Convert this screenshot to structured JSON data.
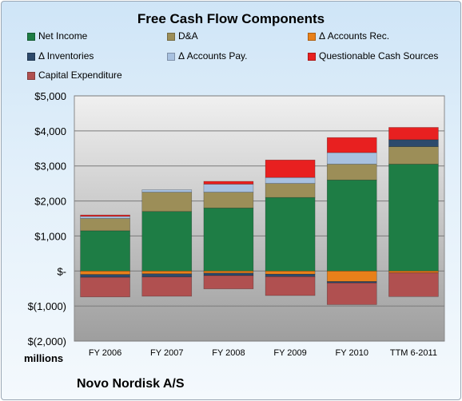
{
  "chart_data": {
    "type": "bar",
    "stacked": true,
    "title": "Free Cash Flow Components",
    "unit_label": "millions",
    "footer": "Novo Nordisk A/S",
    "categories": [
      "FY 2006",
      "FY 2007",
      "FY 2008",
      "FY 2009",
      "FY 2010",
      "TTM 6-2011"
    ],
    "ylim": [
      -2000,
      5000
    ],
    "yticks": [
      -2000,
      -1000,
      0,
      1000,
      2000,
      3000,
      4000,
      5000
    ],
    "ytick_labels": [
      "$(2,000)",
      "$(1,000)",
      "$-",
      "$1,000",
      "$2,000",
      "$3,000",
      "$4,000",
      "$5,000"
    ],
    "grid": true,
    "legend_position": "top",
    "series": [
      {
        "name": "Net Income",
        "color": "#1e7d45",
        "values": [
          1150,
          1700,
          1800,
          2100,
          2600,
          3050
        ]
      },
      {
        "name": "D&A",
        "color": "#9c8e58",
        "values": [
          350,
          550,
          450,
          400,
          450,
          500
        ]
      },
      {
        "name": "Δ Accounts Rec.",
        "color": "#e8801a",
        "values": [
          -100,
          -80,
          -60,
          -90,
          -300,
          -50
        ]
      },
      {
        "name": "Δ Inventories",
        "color": "#2d4a6c",
        "values": [
          -80,
          -90,
          -70,
          -70,
          -40,
          200
        ]
      },
      {
        "name": "Δ Accounts Pay.",
        "color": "#a8c1e0",
        "values": [
          60,
          70,
          230,
          170,
          330,
          0
        ]
      },
      {
        "name": "Questionable Cash Sources",
        "color": "#e82020",
        "values": [
          40,
          0,
          80,
          500,
          430,
          350
        ]
      },
      {
        "name": "Capital Expenditure",
        "color": "#b05050",
        "values": [
          -560,
          -550,
          -380,
          -540,
          -620,
          -680
        ]
      }
    ]
  }
}
